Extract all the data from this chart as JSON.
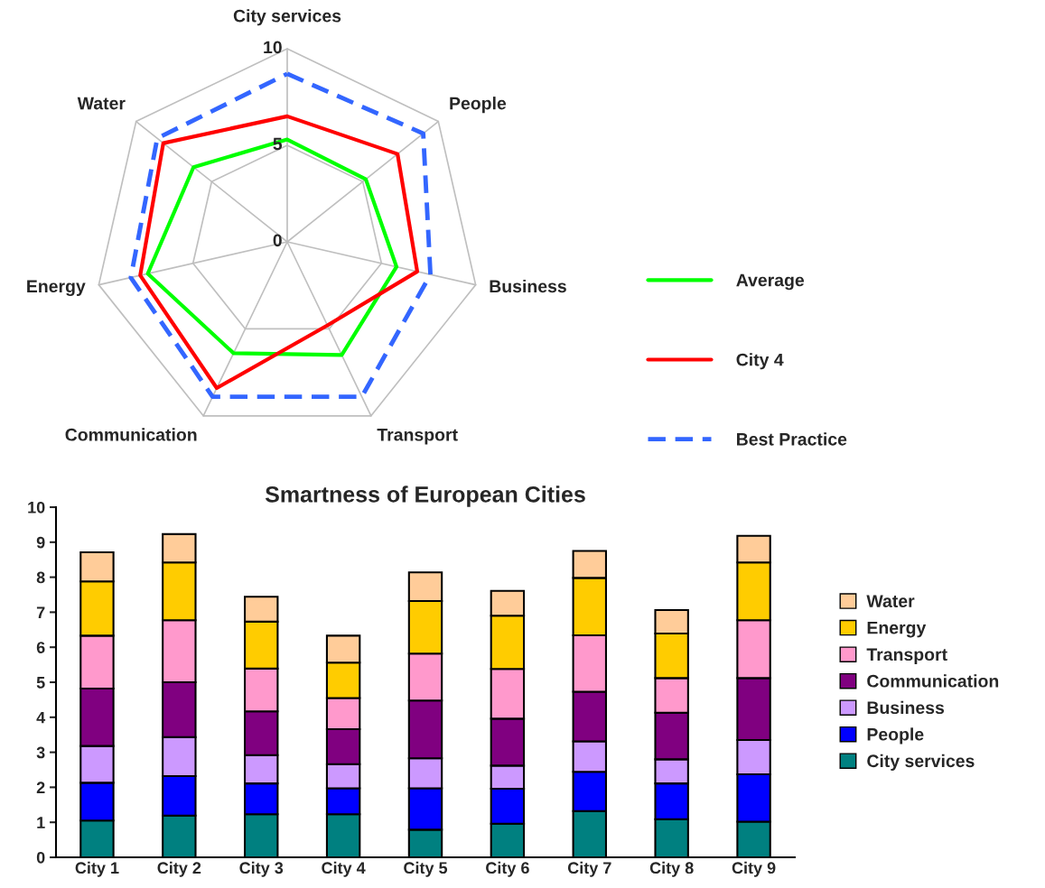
{
  "chart_data": [
    {
      "type": "radar",
      "categories": [
        "City services",
        "People",
        "Business",
        "Transport",
        "Communication",
        "Energy",
        "Water"
      ],
      "ylim": [
        0,
        10
      ],
      "yticks": [
        0,
        5,
        10
      ],
      "legend": "right",
      "series": [
        {
          "name": "Average",
          "color": "#00ff00",
          "line_style": "solid",
          "values": [
            5.3,
            5.2,
            5.8,
            6.5,
            6.4,
            7.4,
            6.2
          ]
        },
        {
          "name": "City 4",
          "color": "#ff0000",
          "line_style": "solid",
          "values": [
            6.5,
            7.3,
            6.9,
            4.8,
            8.4,
            7.8,
            8.2
          ]
        },
        {
          "name": "Best Practice",
          "color": "#3366ff",
          "line_style": "dashed",
          "values": [
            8.7,
            9.0,
            7.6,
            8.9,
            8.9,
            8.3,
            8.6
          ]
        }
      ]
    },
    {
      "type": "bar",
      "stacked": true,
      "title": "Smartness of European Cities",
      "categories": [
        "City 1",
        "City 2",
        "City 3",
        "City 4",
        "City 5",
        "City 6",
        "City 7",
        "City 8",
        "City 9"
      ],
      "ylim": [
        0,
        10
      ],
      "yticks": [
        0,
        1,
        2,
        3,
        4,
        5,
        6,
        7,
        8,
        9,
        10
      ],
      "grid": false,
      "legend": "right",
      "series": [
        {
          "name": "City services",
          "color": "#008080",
          "values": [
            1.05,
            1.19,
            1.23,
            1.23,
            0.79,
            0.96,
            1.32,
            1.09,
            1.02
          ]
        },
        {
          "name": "People",
          "color": "#0000ff",
          "values": [
            1.08,
            1.13,
            0.88,
            0.74,
            1.18,
            1.0,
            1.12,
            1.02,
            1.35
          ]
        },
        {
          "name": "Business",
          "color": "#cc99ff",
          "values": [
            1.05,
            1.11,
            0.81,
            0.69,
            0.86,
            0.66,
            0.87,
            0.69,
            0.98
          ]
        },
        {
          "name": "Communication",
          "color": "#800080",
          "values": [
            1.64,
            1.57,
            1.25,
            1.0,
            1.65,
            1.34,
            1.42,
            1.33,
            1.77
          ]
        },
        {
          "name": "Transport",
          "color": "#ff99cc",
          "values": [
            1.51,
            1.77,
            1.22,
            0.89,
            1.34,
            1.42,
            1.61,
            0.99,
            1.65
          ]
        },
        {
          "name": "Energy",
          "color": "#ffcc00",
          "values": [
            1.55,
            1.65,
            1.34,
            1.01,
            1.5,
            1.52,
            1.64,
            1.27,
            1.65
          ]
        },
        {
          "name": "Water",
          "color": "#ffcc99",
          "values": [
            0.83,
            0.81,
            0.71,
            0.77,
            0.82,
            0.71,
            0.77,
            0.67,
            0.76
          ]
        }
      ]
    }
  ]
}
